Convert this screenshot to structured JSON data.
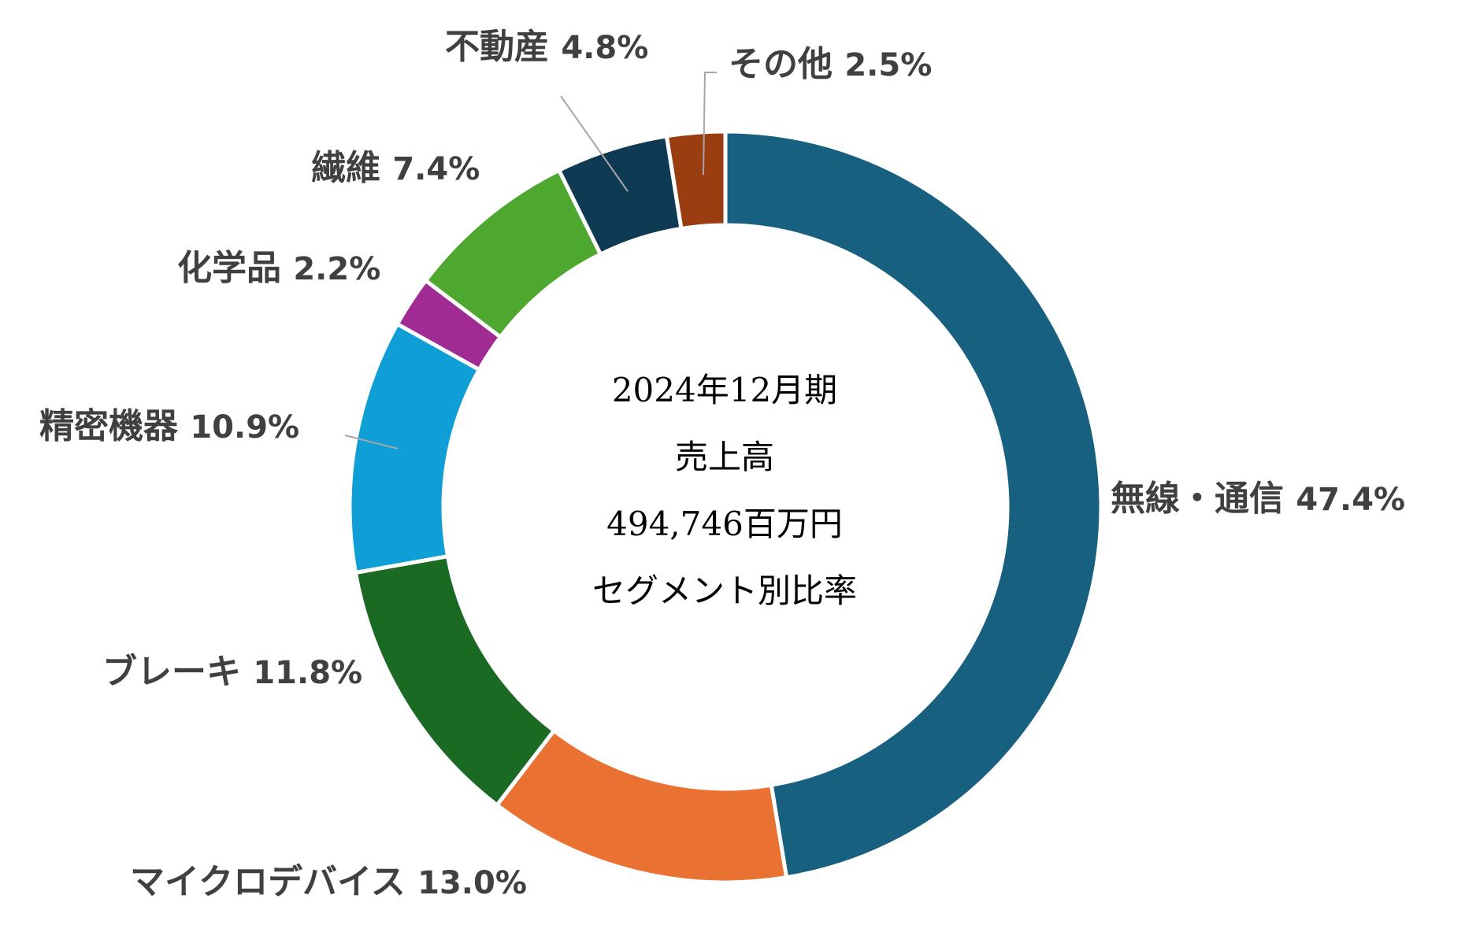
{
  "chart_data": {
    "type": "pie",
    "variant": "donut",
    "legend": "none",
    "center_text": {
      "line1_num": "2024",
      "line1_a": "年",
      "line1_num2": "12",
      "line1_b": "月期",
      "line2": "売上高",
      "line3_num": "494,746",
      "line3_unit": "百万円",
      "line4": "セグメント別比率"
    },
    "slices": [
      {
        "name": "無線・通信",
        "value": 47.4,
        "label": "47.4%",
        "color": "#17607f"
      },
      {
        "name": "マイクロデバイス",
        "value": 13.0,
        "label": "13.0%",
        "color": "#e97132"
      },
      {
        "name": "ブレーキ",
        "value": 11.8,
        "label": "11.8%",
        "color": "#1b6a23"
      },
      {
        "name": "精密機器",
        "value": 10.9,
        "label": "10.9%",
        "color": "#0f9ed5"
      },
      {
        "name": "化学品",
        "value": 2.2,
        "label": "2.2%",
        "color": "#a02b93"
      },
      {
        "name": "繊維",
        "value": 7.4,
        "label": "7.4%",
        "color": "#4ea72e"
      },
      {
        "name": "不動産",
        "value": 4.8,
        "label": "4.8%",
        "color": "#0e3b53"
      },
      {
        "name": "その他",
        "value": 2.5,
        "label": "2.5%",
        "color": "#9a3d11"
      }
    ]
  }
}
